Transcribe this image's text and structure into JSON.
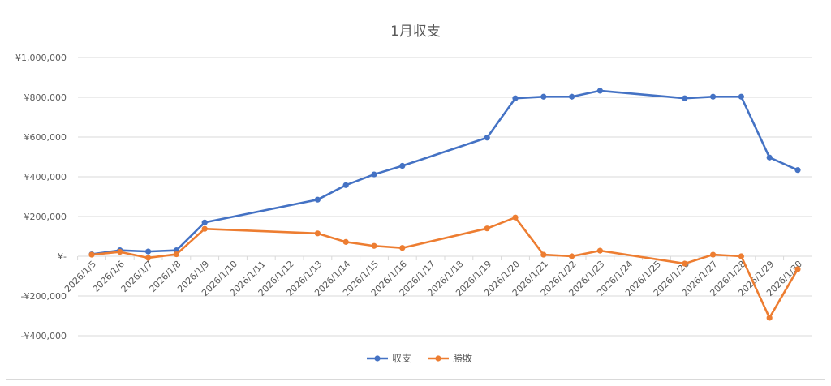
{
  "chart_data": {
    "type": "line",
    "title": "1月収支",
    "xlabel": "",
    "ylabel": "",
    "x_axis_type": "date",
    "categories": [
      "2026/1/5",
      "2026/1/6",
      "2026/1/7",
      "2026/1/8",
      "2026/1/9",
      "2026/1/10",
      "2026/1/11",
      "2026/1/12",
      "2026/1/13",
      "2026/1/14",
      "2026/1/15",
      "2026/1/16",
      "2026/1/17",
      "2026/1/18",
      "2026/1/19",
      "2026/1/20",
      "2026/1/21",
      "2026/1/22",
      "2026/1/23",
      "2026/1/24",
      "2026/1/25",
      "2026/1/26",
      "2026/1/27",
      "2026/1/28",
      "2026/1/29",
      "2026/1/30"
    ],
    "x": [
      "2026/1/5",
      "2026/1/6",
      "2026/1/7",
      "2026/1/8",
      "2026/1/9",
      "2026/1/13",
      "2026/1/14",
      "2026/1/15",
      "2026/1/16",
      "2026/1/19",
      "2026/1/20",
      "2026/1/21",
      "2026/1/22",
      "2026/1/23",
      "2026/1/26",
      "2026/1/27",
      "2026/1/28",
      "2026/1/29",
      "2026/1/30"
    ],
    "series": [
      {
        "name": "収支",
        "color": "#4472c4",
        "values": [
          10000,
          30000,
          24000,
          30000,
          170000,
          285000,
          358000,
          412000,
          455000,
          597000,
          795000,
          803000,
          803000,
          833000,
          795000,
          803000,
          803000,
          497000,
          434000
        ]
      },
      {
        "name": "勝敗",
        "color": "#ed7d31",
        "values": [
          8000,
          22000,
          -8000,
          10000,
          138000,
          115000,
          72000,
          52000,
          42000,
          140000,
          195000,
          8000,
          0,
          28000,
          -37000,
          8000,
          0,
          -310000,
          -65000
        ]
      }
    ],
    "ylim": [
      -400000,
      1000000
    ],
    "yticks": [
      1000000,
      800000,
      600000,
      400000,
      200000,
      0,
      -200000,
      -400000
    ],
    "ytick_labels": [
      "¥1,000,000",
      "¥800,000",
      "¥600,000",
      "¥400,000",
      "¥200,000",
      "¥-",
      "-¥200,000",
      "-¥400,000"
    ],
    "grid": true,
    "legend_position": "bottom"
  }
}
